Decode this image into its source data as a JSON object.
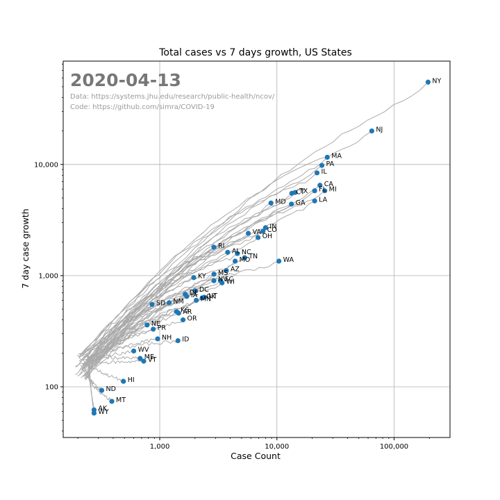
{
  "chart_data": {
    "type": "scatter",
    "title": "Total cases vs 7 days growth, US States",
    "xlabel": "Case Count",
    "ylabel": "7 day case growth",
    "x_scale": "log",
    "y_scale": "log",
    "xlim": [
      150,
      300000
    ],
    "ylim": [
      35,
      85000
    ],
    "x_ticks": [
      {
        "value": 1000,
        "label": "1,000"
      },
      {
        "value": 10000,
        "label": "10,000"
      },
      {
        "value": 100000,
        "label": "100,000"
      }
    ],
    "y_ticks": [
      {
        "value": 100,
        "label": "100"
      },
      {
        "value": 1000,
        "label": "1,000"
      },
      {
        "value": 10000,
        "label": "10,000"
      }
    ],
    "grid": true,
    "annotations": {
      "date": "2020-04-13",
      "data_source": "Data: https://systems.jhu.edu/research/public-health/ncov/",
      "code_source": "Code: https://github.com/simra/COVID-19"
    },
    "colors": {
      "points": "#1f77b4",
      "trajectories": "#aaaaaa",
      "date": "#777777",
      "source_text": "#999999",
      "grid": "#b0b0b0"
    },
    "points": [
      {
        "state": "NY",
        "x": 195000,
        "y": 55000
      },
      {
        "state": "NJ",
        "x": 64500,
        "y": 20000
      },
      {
        "state": "MA",
        "x": 26900,
        "y": 11600
      },
      {
        "state": "PA",
        "x": 24200,
        "y": 9800
      },
      {
        "state": "IL",
        "x": 22000,
        "y": 8400
      },
      {
        "state": "CA",
        "x": 23300,
        "y": 6500
      },
      {
        "state": "FL",
        "x": 21000,
        "y": 5800
      },
      {
        "state": "MI",
        "x": 25600,
        "y": 5800
      },
      {
        "state": "CT",
        "x": 13400,
        "y": 5500
      },
      {
        "state": "TX",
        "x": 14300,
        "y": 5600
      },
      {
        "state": "LA",
        "x": 21000,
        "y": 4700
      },
      {
        "state": "MD",
        "x": 8900,
        "y": 4500
      },
      {
        "state": "GA",
        "x": 13300,
        "y": 4400
      },
      {
        "state": "IN",
        "x": 8000,
        "y": 2700
      },
      {
        "state": "CO",
        "x": 7600,
        "y": 2500
      },
      {
        "state": "VA",
        "x": 5700,
        "y": 2400
      },
      {
        "state": "OH",
        "x": 6900,
        "y": 2200
      },
      {
        "state": "WA",
        "x": 10400,
        "y": 1350
      },
      {
        "state": "RI",
        "x": 2900,
        "y": 1800
      },
      {
        "state": "AL",
        "x": 3800,
        "y": 1620
      },
      {
        "state": "NC",
        "x": 4600,
        "y": 1580
      },
      {
        "state": "TN",
        "x": 5300,
        "y": 1450
      },
      {
        "state": "MO",
        "x": 4400,
        "y": 1350
      },
      {
        "state": "AZ",
        "x": 3700,
        "y": 1110
      },
      {
        "state": "MS",
        "x": 2900,
        "y": 1030
      },
      {
        "state": "KY",
        "x": 1950,
        "y": 960
      },
      {
        "state": "NV",
        "x": 2900,
        "y": 900
      },
      {
        "state": "SC",
        "x": 3300,
        "y": 900
      },
      {
        "state": "WI",
        "x": 3400,
        "y": 860
      },
      {
        "state": "DC",
        "x": 2000,
        "y": 730
      },
      {
        "state": "DE",
        "x": 1650,
        "y": 680
      },
      {
        "state": "IA",
        "x": 1700,
        "y": 650
      },
      {
        "state": "UT",
        "x": 2400,
        "y": 640
      },
      {
        "state": "OK",
        "x": 2300,
        "y": 630
      },
      {
        "state": "MN",
        "x": 2050,
        "y": 600
      },
      {
        "state": "NM",
        "x": 1200,
        "y": 570
      },
      {
        "state": "SD",
        "x": 860,
        "y": 550
      },
      {
        "state": "KS",
        "x": 1390,
        "y": 475
      },
      {
        "state": "AR",
        "x": 1450,
        "y": 460
      },
      {
        "state": "OR",
        "x": 1580,
        "y": 400
      },
      {
        "state": "NE",
        "x": 780,
        "y": 360
      },
      {
        "state": "PR",
        "x": 880,
        "y": 330
      },
      {
        "state": "NH",
        "x": 960,
        "y": 270
      },
      {
        "state": "ID",
        "x": 1430,
        "y": 260
      },
      {
        "state": "WV",
        "x": 600,
        "y": 210
      },
      {
        "state": "ME",
        "x": 680,
        "y": 180
      },
      {
        "state": "VT",
        "x": 730,
        "y": 170
      },
      {
        "state": "HI",
        "x": 490,
        "y": 112
      },
      {
        "state": "ND",
        "x": 320,
        "y": 93
      },
      {
        "state": "MT",
        "x": 390,
        "y": 74
      },
      {
        "state": "AK",
        "x": 275,
        "y": 62
      },
      {
        "state": "WY",
        "x": 275,
        "y": 58
      }
    ]
  }
}
